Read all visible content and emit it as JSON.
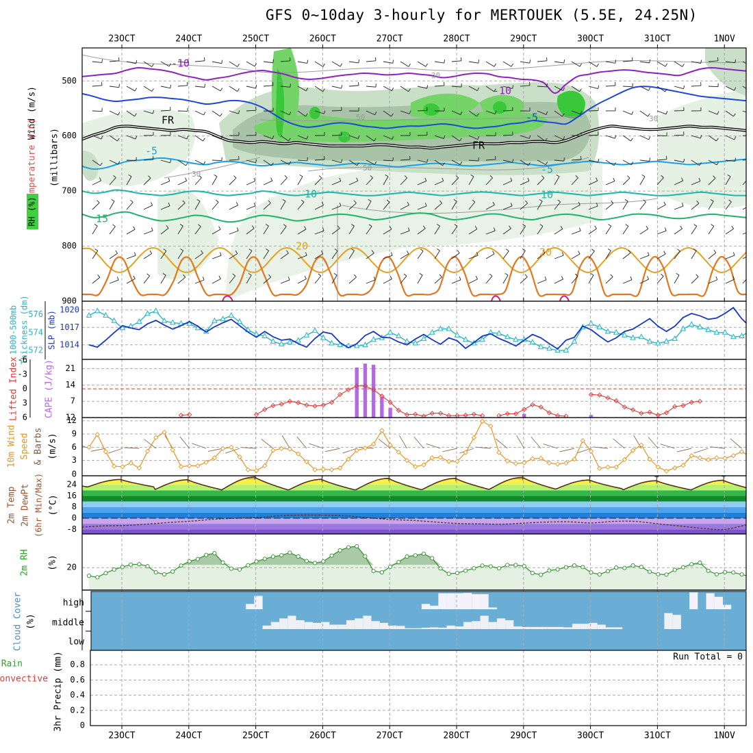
{
  "title": "GFS 0~10day 3-hourly for MERTOUEK (5.5E, 24.25N)",
  "colors": {
    "purple": "#8f1fc0",
    "blue": "#1f45d9",
    "lightblue": "#1aa0e6",
    "teal": "#1bb6a8",
    "green": "#21b26a",
    "orange": "#e4a020",
    "darkorange": "#e0761e",
    "magenta": "#d01f8a",
    "cyan": "#29b4c4",
    "slpblue": "#1736c7",
    "liRed": "#e03a3a",
    "cape": "#b567e8",
    "wind": "#e89420",
    "barb": "#8b6a55",
    "cloudBlue": "#6aaed6"
  },
  "chart_data": [
    {
      "type": "line",
      "name": "upper-air",
      "x_ticks": [
        "23OCT",
        "24OCT",
        "25OCT",
        "26OCT",
        "27OCT",
        "28OCT",
        "29OCT",
        "30OCT",
        "31OCT",
        "1NOV"
      ],
      "ylabel_parts": [
        "Wind (m/s)",
        "Temperature (°C)",
        "RH (%)",
        "(millibars)"
      ],
      "yticks": [
        500,
        600,
        700,
        800,
        900
      ],
      "ylim": [
        440,
        900
      ],
      "contour_labels": [
        "-10",
        "-10",
        "-5",
        "-5",
        "-5",
        "10",
        "10",
        "15",
        "20",
        "20",
        "FR",
        "FR",
        "30",
        "30",
        "30",
        "50",
        "50"
      ],
      "isotherms": [
        {
          "name": "-10",
          "color": "purple",
          "p": [
            492,
            490,
            488,
            486,
            480,
            476,
            478,
            480,
            484,
            490,
            494,
            498,
            495,
            492,
            487,
            483,
            481,
            484,
            488,
            494,
            497,
            496,
            493,
            490,
            488,
            486,
            487,
            489,
            488,
            486,
            488,
            490,
            494,
            492,
            488,
            486,
            487,
            492,
            494,
            497,
            498,
            503,
            522,
            506,
            492,
            488,
            484,
            482,
            480,
            481,
            484,
            486,
            488,
            490,
            484,
            478,
            476,
            478,
            480,
            482
          ]
        },
        {
          "name": "-5",
          "color": "blue",
          "p": [
            523,
            528,
            534,
            537,
            535,
            533,
            530,
            530,
            532,
            534,
            538,
            542,
            540,
            536,
            536,
            540,
            548,
            560,
            572,
            580,
            584,
            582,
            578,
            576,
            578,
            582,
            584,
            586,
            584,
            582,
            582,
            580,
            578,
            580,
            584,
            586,
            584,
            582,
            578,
            576,
            572,
            574,
            576,
            578,
            566,
            552,
            540,
            530,
            520,
            512,
            510,
            512,
            516,
            520,
            524,
            528,
            530,
            532,
            534,
            536
          ]
        },
        {
          "name": "FR",
          "color": "black",
          "p": [
            606,
            598,
            592,
            584,
            582,
            584,
            586,
            588,
            590,
            588,
            590,
            592,
            600,
            608,
            610,
            612,
            610,
            612,
            614,
            612,
            614,
            616,
            618,
            618,
            618,
            618,
            616,
            616,
            618,
            620,
            620,
            622,
            620,
            618,
            616,
            614,
            614,
            614,
            612,
            612,
            610,
            610,
            612,
            608,
            600,
            592,
            586,
            582,
            584,
            586,
            588,
            588,
            586,
            584,
            582,
            584,
            584,
            586,
            588,
            590
          ]
        },
        {
          "name": "-5",
          "color": "lightblue",
          "p": [
            655,
            660,
            658,
            652,
            646,
            644,
            642,
            640,
            642,
            646,
            650,
            652,
            648,
            646,
            648,
            652,
            654,
            652,
            650,
            648,
            650,
            652,
            654,
            652,
            650,
            650,
            652,
            654,
            656,
            654,
            652,
            650,
            650,
            652,
            654,
            654,
            652,
            650,
            648,
            650,
            652,
            654,
            652,
            650,
            648,
            646,
            648,
            650,
            652,
            650,
            648,
            646,
            648,
            650,
            652,
            650,
            648,
            646,
            644,
            642
          ]
        },
        {
          "name": "10",
          "color": "teal",
          "p": [
            700,
            704,
            702,
            698,
            700,
            704,
            706,
            708,
            706,
            702,
            700,
            702,
            706,
            708,
            706,
            704,
            700,
            702,
            706,
            708,
            706,
            704,
            702,
            704,
            706,
            708,
            708,
            706,
            704,
            702,
            704,
            706,
            708,
            706,
            704,
            702,
            702,
            704,
            706,
            708,
            706,
            704,
            702,
            704,
            706,
            708,
            706,
            704,
            702,
            704,
            706,
            708,
            708,
            706,
            704,
            702,
            704,
            706,
            708,
            708
          ]
        },
        {
          "name": "15",
          "color": "green",
          "p": [
            742,
            748,
            746,
            740,
            738,
            744,
            750,
            754,
            752,
            748,
            744,
            746,
            752,
            756,
            754,
            748,
            744,
            746,
            750,
            754,
            752,
            748,
            744,
            742,
            744,
            748,
            752,
            750,
            746,
            742,
            740,
            742,
            748,
            752,
            750,
            746,
            742,
            742,
            746,
            750,
            752,
            748,
            744,
            742,
            744,
            748,
            752,
            750,
            746,
            742,
            742,
            744,
            748,
            750,
            748,
            744,
            742,
            744,
            746,
            748
          ]
        }
      ]
    },
    {
      "type": "line",
      "name": "thickness-slp",
      "ylabel": "1000-500mb Thickness (dm) / SLP (mb)",
      "thickness_ticks": [
        572,
        574,
        576
      ],
      "slp_ticks": [
        1014,
        1017,
        1020
      ],
      "thickness_ylim": [
        571,
        577.5
      ],
      "slp_ylim": [
        1011.5,
        1021.5
      ],
      "thickness": [
        575.9,
        576.4,
        575.9,
        575.3,
        574.5,
        574.7,
        575.2,
        576.1,
        576.4,
        575.3,
        575.1,
        575.0,
        575.0,
        574.5,
        574.1,
        575.3,
        575.5,
        575.9,
        575.2,
        574.3,
        573.8,
        573.6,
        573.0,
        572.7,
        572.9,
        573.1,
        573.7,
        574.2,
        573.4,
        572.8,
        572.6,
        572.5,
        572.5,
        572.6,
        573.2,
        573.4,
        574.0,
        573.6,
        573.0,
        572.8,
        573.3,
        574.0,
        574.4,
        574.4,
        573.7,
        573.2,
        572.8,
        573.2,
        574.0,
        573.9,
        573.5,
        573.2,
        573.2,
        572.9,
        572.4,
        572.2,
        572.0,
        572.0,
        573.0,
        574.6,
        575.0,
        574.6,
        574.1,
        574.0,
        573.7,
        573.4,
        573.5,
        573.0,
        572.8,
        573.0,
        573.3,
        574.4,
        574.9,
        574.6,
        574.3,
        574.0,
        574.0,
        573.5,
        573.6,
        574.2,
        574.7,
        575.0,
        575.2,
        574.5,
        574.3
      ],
      "slp": [
        1014.0,
        1013.6,
        1014.8,
        1016.1,
        1017.3,
        1016.9,
        1016.6,
        1017.6,
        1018.2,
        1017.4,
        1016.7,
        1017.3,
        1018.0,
        1017.2,
        1016.2,
        1017.1,
        1017.8,
        1018.4,
        1017.3,
        1016.2,
        1015.3,
        1016.3,
        1015.4,
        1014.8,
        1015.0,
        1014.2,
        1013.6,
        1015.1,
        1016.2,
        1015.9,
        1014.4,
        1013.5,
        1014.2,
        1015.6,
        1016.3,
        1015.3,
        1015.2,
        1014.5,
        1014.0,
        1015.0,
        1015.8,
        1014.9,
        1014.1,
        1015.2,
        1014.7,
        1013.4,
        1014.4,
        1015.5,
        1015.9,
        1015.1,
        1014.5,
        1013.8,
        1014.8,
        1015.8,
        1015.2,
        1014.2,
        1013.3,
        1014.8,
        1015.3,
        1017.2,
        1016.6,
        1015.5,
        1014.5,
        1015.2,
        1016.3,
        1016.7,
        1017.6,
        1018.5,
        1017.2,
        1016.3,
        1017.2,
        1018.7,
        1019.4,
        1019.0,
        1018.4,
        1018.6,
        1019.4,
        1020.4,
        1018.5,
        1017.1,
        1018.2,
        1019.6,
        1019.1,
        1017.6,
        1017.9
      ]
    },
    {
      "type": "line",
      "name": "lifted-index-cape",
      "ylabel": "Lifted Index / CAPE (J/kg)",
      "li_ticks": [
        -6,
        -3,
        0,
        3,
        6
      ],
      "cape_ticks": [
        7,
        14,
        21
      ],
      "li": [
        null,
        null,
        null,
        null,
        null,
        null,
        null,
        null,
        null,
        null,
        null,
        5.5,
        5.4,
        null,
        null,
        null,
        null,
        null,
        null,
        null,
        5.4,
        4.3,
        3.5,
        3.2,
        2.6,
        2.9,
        3.4,
        3.6,
        3.4,
        2.8,
        1.2,
        0.2,
        -0.6,
        -0.6,
        0.2,
        1.5,
        2.8,
        4.5,
        5.4,
        5.3,
        5.7,
        5.1,
        5.1,
        5.6,
        5.6,
        5.5,
        5.3,
        5.6,
        null,
        5.6,
        5.2,
        5.2,
        4.3,
        3.3,
        3.8,
        5.0,
        5.6,
        5.7,
        null,
        null,
        1.2,
        1.3,
        1.9,
        2.5,
        3.8,
        4.4,
        5.1,
        4.9,
        5.5,
        5.0,
        3.7,
        3.5,
        2.8,
        2.6,
        null,
        null,
        null,
        null,
        null,
        null,
        null,
        null,
        null,
        null,
        null
      ],
      "cape": [
        0,
        0,
        0,
        0,
        0,
        0,
        0,
        0,
        0,
        0,
        0,
        0,
        0,
        0,
        0,
        0,
        0,
        0,
        0,
        0,
        0,
        0,
        0,
        0,
        0,
        0,
        0,
        0,
        0,
        0,
        0,
        0,
        21.5,
        23.2,
        22.7,
        8.8,
        4.2,
        0,
        0,
        0,
        0,
        0,
        0,
        0,
        0,
        0,
        0,
        0,
        0,
        0,
        0,
        0,
        1.6,
        0,
        0,
        0,
        0,
        0,
        0,
        0,
        1.1,
        0,
        0,
        0,
        0,
        0,
        0,
        0,
        0,
        0,
        0,
        0,
        0,
        0,
        0,
        0,
        0,
        0,
        0,
        0,
        0,
        0,
        0,
        0,
        0
      ],
      "li_dashed_line": 0
    },
    {
      "type": "line",
      "name": "10m-wind",
      "ylabel": "10m Wind Speed & Barbs (m/s)",
      "yticks": [
        3,
        6,
        9,
        12
      ],
      "speed": [
        6.0,
        8.9,
        5.0,
        1.7,
        1.6,
        2.4,
        1.3,
        5.1,
        8.2,
        9.4,
        5.4,
        1.6,
        1.8,
        1.8,
        2.6,
        3.6,
        5.7,
        6.0,
        3.8,
        0.9,
        0.7,
        1.8,
        5.3,
        5.7,
        5.6,
        4.5,
        2.7,
        0.9,
        1.0,
        0.9,
        1.3,
        3.3,
        5.3,
        5.8,
        6.7,
        9.8,
        6.5,
        4.9,
        3.0,
        1.6,
        2.0,
        3.6,
        3.7,
        2.8,
        2.8,
        4.8,
        8.2,
        11.9,
        10.8,
        4.8,
        2.9,
        2.3,
        2.5,
        3.4,
        3.5,
        2.4,
        2.2,
        2.4,
        3.3,
        7.5,
        5.1,
        1.2,
        1.5,
        1.5,
        3.2,
        5.3,
        6.5,
        3.3,
        1.5,
        0.6,
        1.3,
        1.9,
        4.1,
        3.6,
        3.2,
        3.6,
        3.5,
        4.1,
        5.0,
        3.9,
        2.1,
        2.2,
        3.2,
        2.2,
        2.2
      ]
    },
    {
      "type": "area",
      "name": "2m-temp-dewpt",
      "ylabel": "2m Temp / 2m DewPt (6hr Min/Max) (°C)",
      "yticks": [
        -8,
        0,
        8,
        16,
        24
      ],
      "temp_peaks": [
        27.8,
        27.6,
        29.5,
        27.9,
        28.6,
        28.6,
        29.3,
        27.4,
        26.9,
        27.2
      ],
      "temp_troughs": [
        22.4,
        20.4,
        20.2,
        20.2,
        20.2,
        20.6,
        20.7,
        21.0,
        20.4,
        20.0,
        19.7
      ],
      "dewpoint": [
        -6.4,
        -5.5,
        -5.2,
        -4.2,
        -3.0,
        -2.0,
        -0.7,
        0.0,
        0.6,
        1.8,
        2.2,
        2.1,
        1.6,
        0.2,
        -1.0,
        -1.6,
        -2.8,
        -3.8,
        -4.1,
        -4.3,
        -3.5,
        -2.8,
        -2.6,
        -3.4,
        -2.3,
        -2.3,
        -4.0,
        -5.6,
        -7.2,
        -8.1,
        -4.8
      ]
    },
    {
      "type": "area",
      "name": "2m-rh",
      "ylabel": "2m RH (%)",
      "yticks": [
        20
      ],
      "rh": [
        12.7,
        11.4,
        15.1,
        18.3,
        20.6,
        22.7,
        23.0,
        21.2,
        15.8,
        14.0,
        16.5,
        21.8,
        25.6,
        27.6,
        31.3,
        32.8,
        24.5,
        19.1,
        18.4,
        22.1,
        25.4,
        27.8,
        29.8,
        31.0,
        33.3,
        29.9,
        25.9,
        24.1,
        25.5,
        30.7,
        35.4,
        38.1,
        39.0,
        30.1,
        17.0,
        15.8,
        20.8,
        25.0,
        29.9,
        30.9,
        32.4,
        28.4,
        19.3,
        14.5,
        15.2,
        17.3,
        19.4,
        21.8,
        21.1,
        19.4,
        22.3,
        22.3,
        21.3,
        15.2,
        13.7,
        17.4,
        18.5,
        20.3,
        21.9,
        20.5,
        15.7,
        13.9,
        16.9,
        20.0,
        19.7,
        21.9,
        20.6,
        16.3,
        14.1,
        13.8,
        18.0,
        20.3,
        23.0,
        24.4,
        17.2,
        14.1,
        16.0,
        15.7,
        13.9,
        12.0,
        11.5,
        12.3,
        14.5,
        17.0,
        19.8
      ]
    },
    {
      "type": "bar",
      "name": "cloud-cover",
      "ylabel": "Cloud Cover (%)",
      "levels": [
        "high",
        "middle",
        "low"
      ],
      "high": [
        0,
        0,
        0,
        0,
        0,
        0,
        0,
        0,
        0,
        0,
        0,
        0,
        0,
        0,
        0,
        0,
        0,
        0,
        0,
        30,
        75,
        0,
        0,
        0,
        0,
        0,
        0,
        0,
        0,
        0,
        0,
        0,
        0,
        0,
        0,
        0,
        0,
        0,
        0,
        0,
        30,
        20,
        90,
        90,
        90,
        92,
        85,
        85,
        10,
        0,
        0,
        0,
        0,
        0,
        0,
        0,
        0,
        0,
        0,
        0,
        0,
        0,
        0,
        0,
        0,
        0,
        0,
        0,
        0,
        0,
        0,
        0,
        95,
        0,
        90,
        70,
        25,
        0,
        0,
        80,
        80,
        15,
        95,
        80,
        95
      ],
      "middle": [
        0,
        0,
        0,
        0,
        0,
        0,
        0,
        0,
        0,
        0,
        0,
        0,
        0,
        0,
        0,
        0,
        0,
        0,
        0,
        0,
        0,
        20,
        40,
        60,
        75,
        50,
        40,
        35,
        40,
        25,
        25,
        50,
        60,
        75,
        45,
        35,
        20,
        18,
        5,
        5,
        8,
        10,
        8,
        20,
        15,
        40,
        45,
        75,
        40,
        60,
        50,
        15,
        12,
        12,
        12,
        12,
        12,
        10,
        30,
        30,
        35,
        25,
        10,
        10,
        0,
        0,
        0,
        0,
        0,
        90,
        80,
        0,
        0,
        0,
        0,
        0,
        0,
        0,
        0,
        0,
        0,
        0,
        0,
        0,
        0
      ]
    },
    {
      "type": "bar",
      "name": "precip",
      "ylabel": "3hr Precip (mm)",
      "legend_left": [
        "Total / Rain",
        "Convective"
      ],
      "yticks": [
        0,
        0.2,
        0.4,
        0.6,
        0.8
      ],
      "run_total": "Run Total = 0",
      "values": []
    }
  ]
}
